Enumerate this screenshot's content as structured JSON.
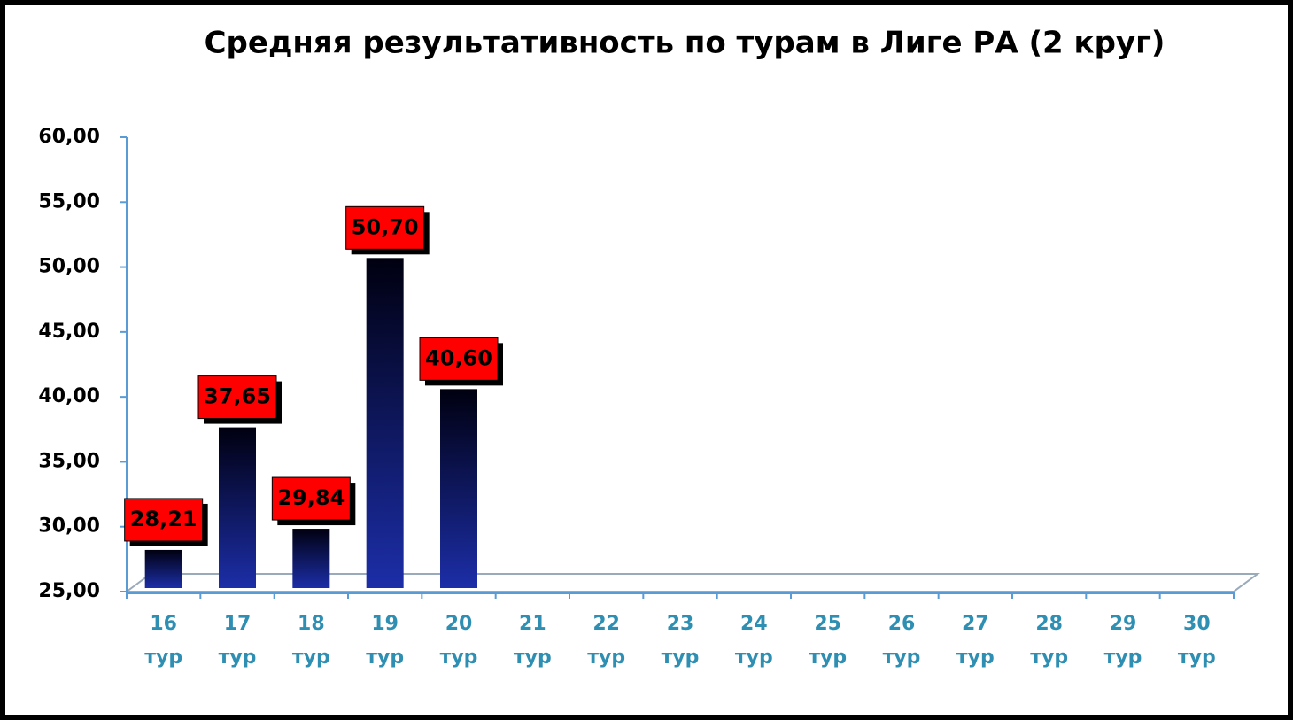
{
  "chart_data": {
    "type": "bar",
    "title": "Средняя результативность по турам в Лиге РА (2 круг)",
    "categories": [
      "16 тур",
      "17 тур",
      "18 тур",
      "19 тур",
      "20 тур",
      "21 тур",
      "22 тур",
      "23 тур",
      "24 тур",
      "25 тур",
      "26 тур",
      "27 тур",
      "28 тур",
      "29 тур",
      "30 тур"
    ],
    "values": [
      28.21,
      37.65,
      29.84,
      50.7,
      40.6,
      null,
      null,
      null,
      null,
      null,
      null,
      null,
      null,
      null,
      null
    ],
    "value_labels": [
      "28,21",
      "37,65",
      "29,84",
      "50,70",
      "40,60",
      null,
      null,
      null,
      null,
      null,
      null,
      null,
      null,
      null,
      null
    ],
    "color": "#1c2ea8",
    "ylim": [
      25,
      60
    ],
    "yticks": [
      {
        "value": 25,
        "label": "25,00"
      },
      {
        "value": 30,
        "label": "30,00"
      },
      {
        "value": 35,
        "label": "35,00"
      },
      {
        "value": 40,
        "label": "40,00"
      },
      {
        "value": 45,
        "label": "45,00"
      },
      {
        "value": 50,
        "label": "50,00"
      },
      {
        "value": 55,
        "label": "55,00"
      },
      {
        "value": 60,
        "label": "60,00"
      }
    ]
  }
}
